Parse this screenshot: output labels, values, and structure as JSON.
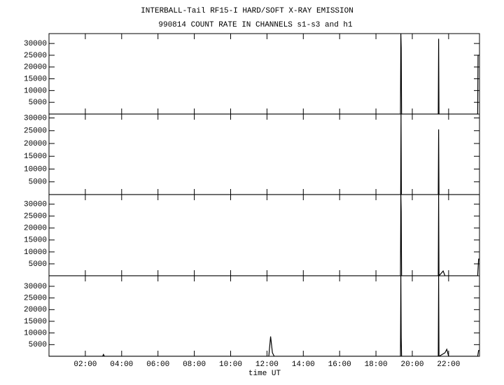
{
  "chart_data": [
    {
      "type": "line",
      "title": "INTERBALL-Tail RF15-I HARD/SOFT X-RAY EMISSION",
      "subtitle": "990814  COUNT RATE IN CHANNELS s1-s3 and h1",
      "xlim": [
        0,
        23.7
      ],
      "ylim": [
        0,
        34200
      ],
      "yticks": [
        5000,
        10000,
        15000,
        20000,
        25000,
        30000
      ],
      "color": "#000000",
      "x": [
        0,
        19.35,
        19.37,
        19.39,
        19.41,
        21.43,
        21.45,
        21.47,
        23.6,
        23.62,
        23.7
      ],
      "values": [
        0,
        0,
        34200,
        28000,
        0,
        0,
        32000,
        0,
        0,
        25000,
        25000
      ]
    },
    {
      "type": "line",
      "xlim": [
        0,
        23.7
      ],
      "ylim": [
        0,
        31500
      ],
      "yticks": [
        5000,
        10000,
        15000,
        20000,
        25000,
        30000
      ],
      "color": "#000000",
      "x": [
        0,
        19.36,
        19.38,
        19.4,
        21.43,
        21.45,
        21.47,
        23.7
      ],
      "values": [
        0,
        0,
        31500,
        0,
        0,
        25500,
        0,
        0
      ]
    },
    {
      "type": "line",
      "xlim": [
        0,
        23.7
      ],
      "ylim": [
        0,
        34000
      ],
      "yticks": [
        5000,
        10000,
        15000,
        20000,
        25000,
        30000
      ],
      "color": "#000000",
      "x": [
        0,
        19.35,
        19.37,
        19.39,
        19.41,
        21.43,
        21.45,
        21.47,
        21.7,
        21.8,
        23.6,
        23.65,
        23.7
      ],
      "values": [
        0,
        0,
        34000,
        27000,
        0,
        0,
        34000,
        0,
        2000,
        0,
        0,
        7000,
        7000
      ]
    },
    {
      "type": "line",
      "xlim": [
        0,
        23.7
      ],
      "ylim": [
        0,
        34500
      ],
      "yticks": [
        5000,
        10000,
        15000,
        20000,
        25000,
        30000
      ],
      "color": "#000000",
      "x_label": "time UT",
      "xticks": [
        {
          "value": 2,
          "label": "02:00"
        },
        {
          "value": 4,
          "label": "04:00"
        },
        {
          "value": 6,
          "label": "06:00"
        },
        {
          "value": 8,
          "label": "08:00"
        },
        {
          "value": 10,
          "label": "10:00"
        },
        {
          "value": 12,
          "label": "12:00"
        },
        {
          "value": 14,
          "label": "14:00"
        },
        {
          "value": 16,
          "label": "16:00"
        },
        {
          "value": 18,
          "label": "18:00"
        },
        {
          "value": 20,
          "label": "20:00"
        },
        {
          "value": 22,
          "label": "22:00"
        }
      ],
      "x": [
        0,
        2.95,
        3.0,
        3.05,
        12.1,
        12.2,
        12.3,
        12.4,
        19.35,
        19.37,
        19.39,
        19.41,
        21.43,
        21.45,
        21.47,
        21.8,
        21.9,
        22.0,
        23.6,
        23.65,
        23.7
      ],
      "values": [
        0,
        0,
        800,
        0,
        0,
        8500,
        1500,
        0,
        0,
        34500,
        8000,
        0,
        0,
        34500,
        0,
        1500,
        3000,
        0,
        0,
        2500,
        2500
      ]
    }
  ]
}
